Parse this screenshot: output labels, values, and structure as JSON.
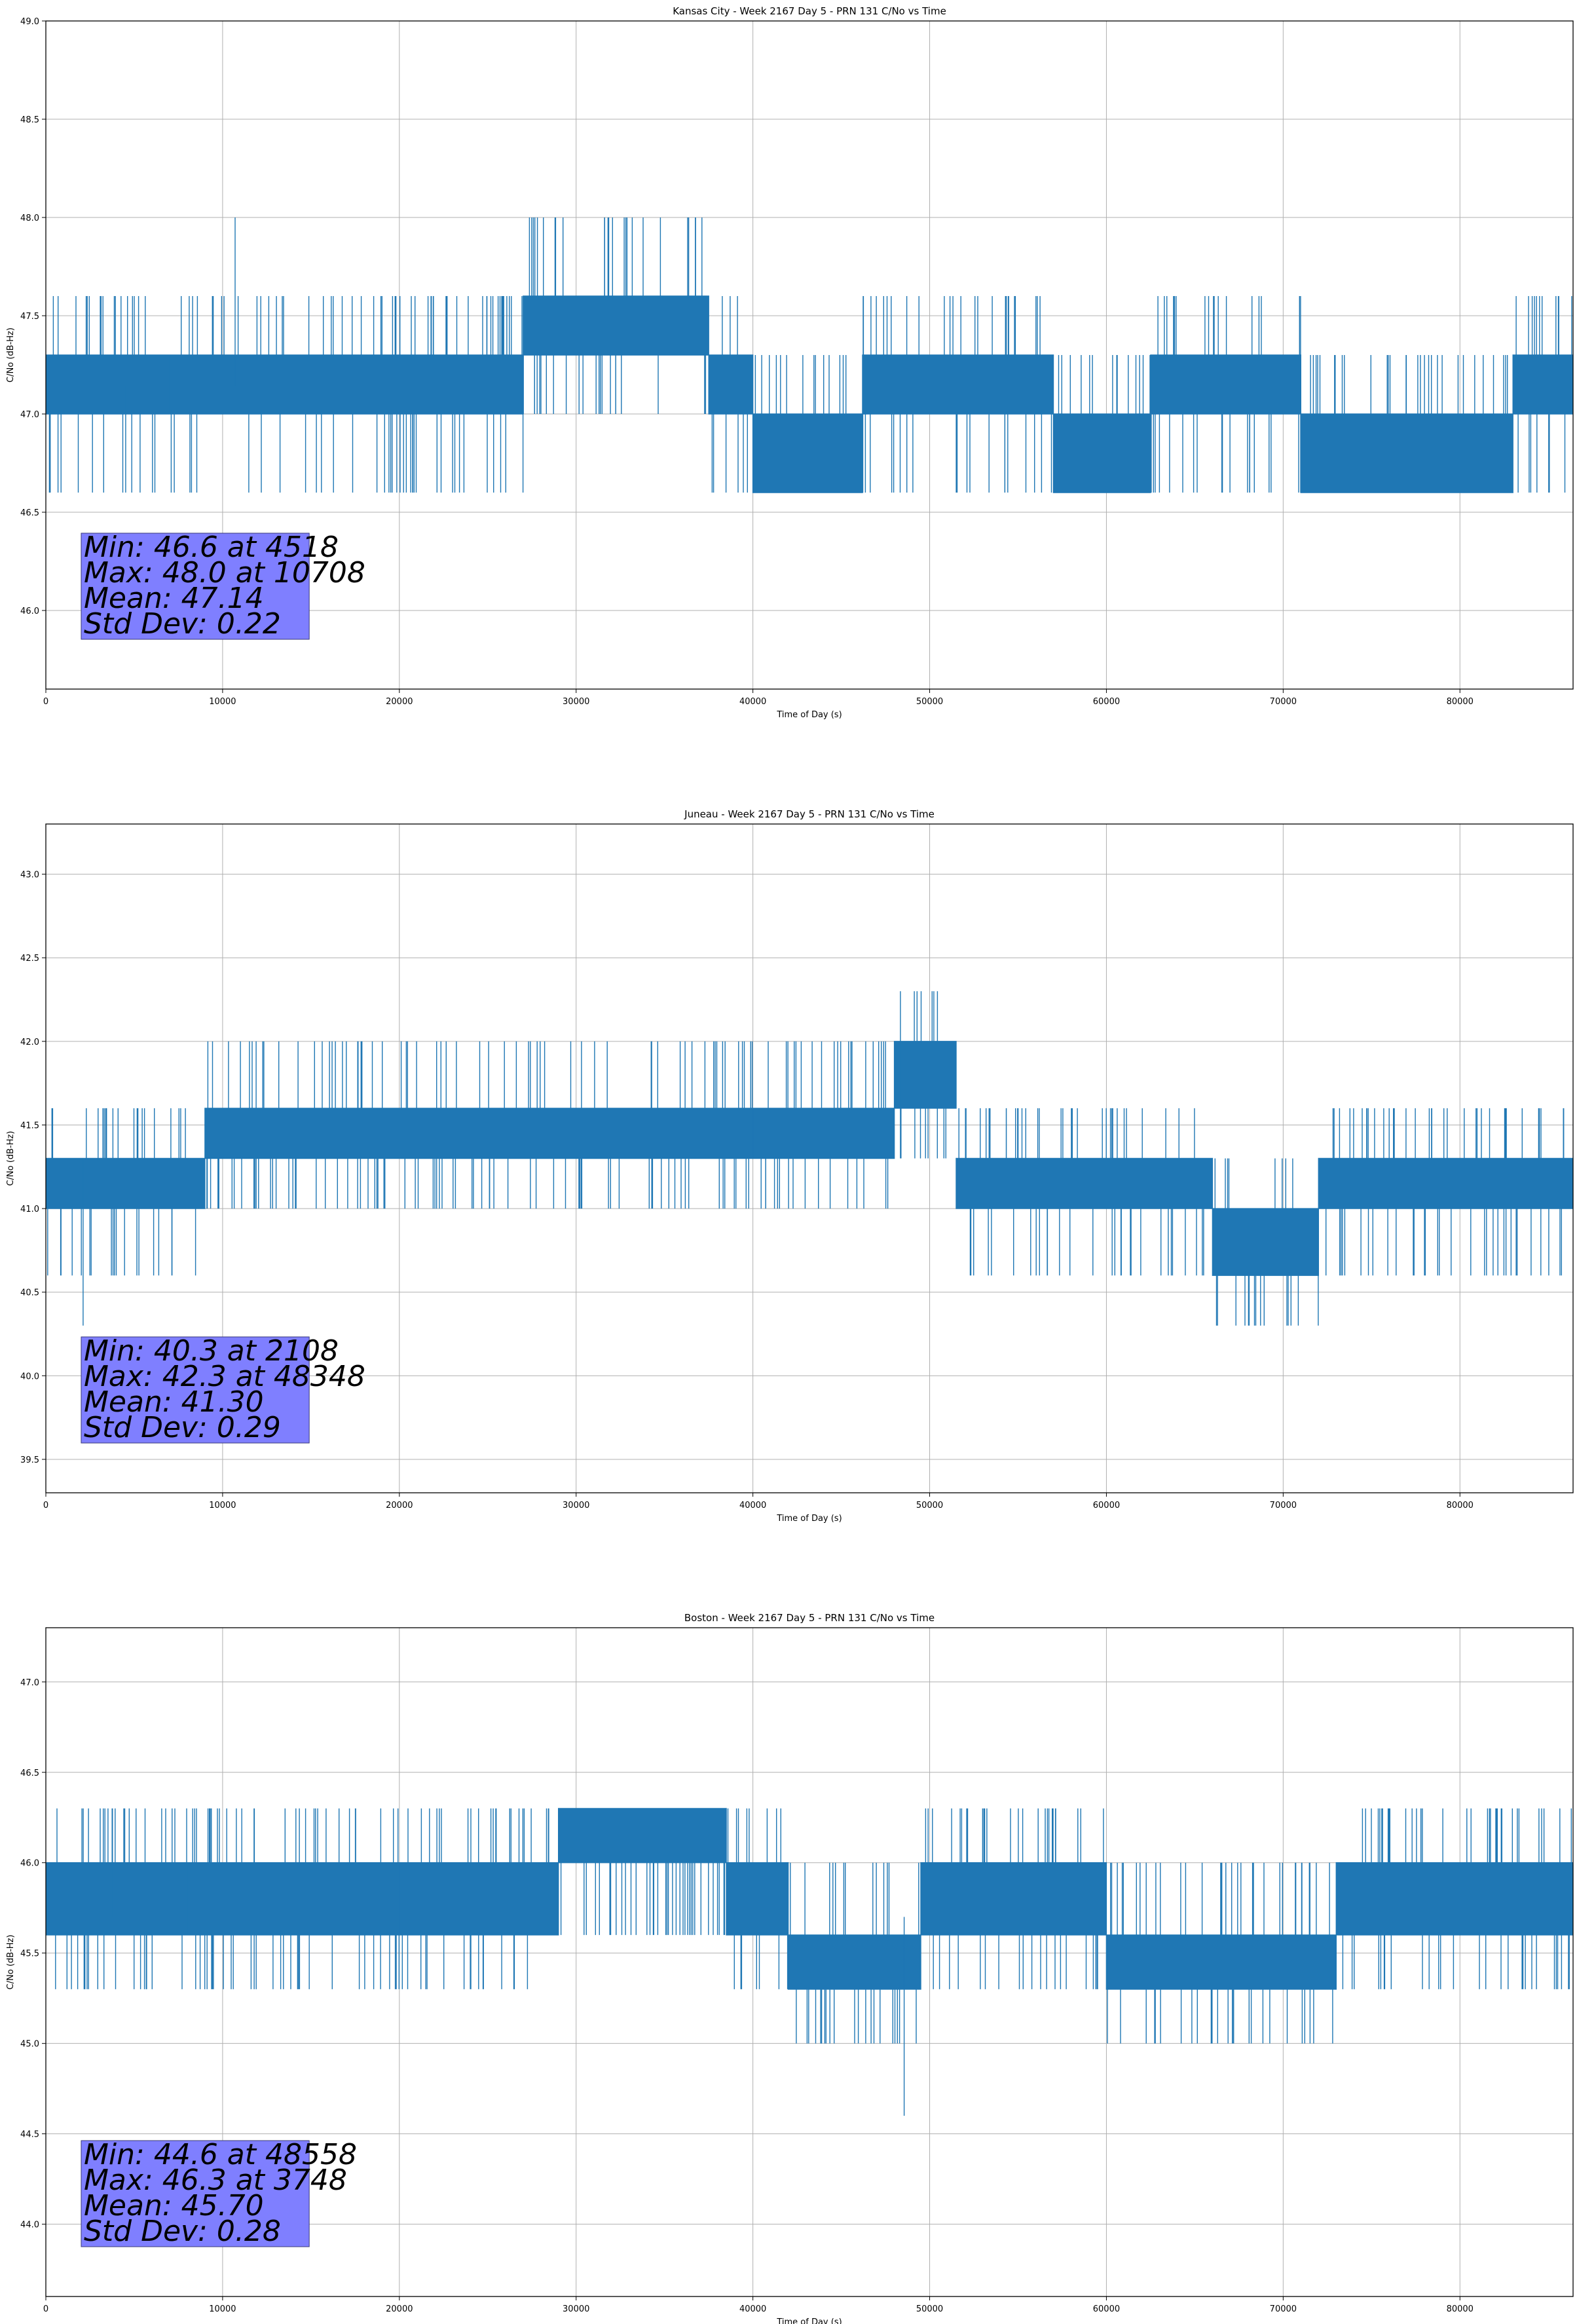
{
  "chart_data": [
    {
      "type": "line",
      "title": "Kansas City - Week 2167 Day 5 - PRN 131 C/No vs Time",
      "xlabel": "Time of Day (s)",
      "ylabel": "C/No (dB-Hz)",
      "xlim": [
        0,
        86400
      ],
      "ylim": [
        45.6,
        49.0
      ],
      "xticks": [
        0,
        10000,
        20000,
        30000,
        40000,
        50000,
        60000,
        70000,
        80000
      ],
      "yticks": [
        46.0,
        46.5,
        47.0,
        47.5,
        48.0,
        48.5,
        49.0
      ],
      "grid": true,
      "series_color": "#1f77b4",
      "quantization_levels": [
        46.6,
        47.0,
        47.3,
        47.6,
        48.0
      ],
      "mean": 47.14,
      "std": 0.22,
      "min": {
        "value": 46.6,
        "time": 4518
      },
      "max": {
        "value": 48.0,
        "time": 10708
      },
      "stats_lines": [
        "Min: 46.6 at 4518",
        "Max: 48.0 at 10708",
        "Mean: 47.14",
        "Std Dev: 0.22"
      ],
      "segments": [
        {
          "x": [
            0,
            7000
          ],
          "low": 47.0,
          "high": 47.3
        },
        {
          "x": [
            7000,
            27000
          ],
          "low": 47.0,
          "high": 47.3
        },
        {
          "x": [
            27000,
            37500
          ],
          "low": 47.3,
          "high": 47.6
        },
        {
          "x": [
            37500,
            40000
          ],
          "low": 47.0,
          "high": 47.3
        },
        {
          "x": [
            40000,
            46200
          ],
          "low": 46.6,
          "high": 47.0
        },
        {
          "x": [
            46200,
            57000
          ],
          "low": 47.0,
          "high": 47.3
        },
        {
          "x": [
            57000,
            62500
          ],
          "low": 46.6,
          "high": 47.0
        },
        {
          "x": [
            62500,
            71000
          ],
          "low": 47.0,
          "high": 47.3
        },
        {
          "x": [
            71000,
            83000
          ],
          "low": 46.6,
          "high": 47.0
        },
        {
          "x": [
            83000,
            86400
          ],
          "low": 47.0,
          "high": 47.3
        }
      ]
    },
    {
      "type": "line",
      "title": "Juneau - Week 2167 Day 5 - PRN 131 C/No vs Time",
      "xlabel": "Time of Day (s)",
      "ylabel": "C/No (dB-Hz)",
      "xlim": [
        0,
        86400
      ],
      "ylim": [
        39.3,
        43.3
      ],
      "xticks": [
        0,
        10000,
        20000,
        30000,
        40000,
        50000,
        60000,
        70000,
        80000
      ],
      "yticks": [
        39.5,
        40.0,
        40.5,
        41.0,
        41.5,
        42.0,
        42.5,
        43.0
      ],
      "grid": true,
      "series_color": "#1f77b4",
      "quantization_levels": [
        40.3,
        40.6,
        41.0,
        41.3,
        41.6,
        42.0,
        42.3
      ],
      "mean": 41.3,
      "std": 0.29,
      "min": {
        "value": 40.3,
        "time": 2108
      },
      "max": {
        "value": 42.3,
        "time": 48348
      },
      "stats_lines": [
        "Min: 40.3 at 2108",
        "Max: 42.3 at 48348",
        "Mean: 41.30",
        "Std Dev: 0.29"
      ],
      "segments": [
        {
          "x": [
            0,
            9000
          ],
          "low": 41.0,
          "high": 41.3
        },
        {
          "x": [
            9000,
            40000
          ],
          "low": 41.3,
          "high": 41.6
        },
        {
          "x": [
            40000,
            48000
          ],
          "low": 41.3,
          "high": 41.6
        },
        {
          "x": [
            48000,
            51500
          ],
          "low": 41.6,
          "high": 42.0
        },
        {
          "x": [
            51500,
            66000
          ],
          "low": 41.0,
          "high": 41.3
        },
        {
          "x": [
            66000,
            72000
          ],
          "low": 40.6,
          "high": 41.0
        },
        {
          "x": [
            72000,
            86400
          ],
          "low": 41.0,
          "high": 41.3
        }
      ]
    },
    {
      "type": "line",
      "title": "Boston - Week 2167 Day 5 - PRN 131 C/No vs Time",
      "xlabel": "Time of Day (s)",
      "ylabel": "C/No (dB-Hz)",
      "xlim": [
        0,
        86400
      ],
      "ylim": [
        43.6,
        47.3
      ],
      "xticks": [
        0,
        10000,
        20000,
        30000,
        40000,
        50000,
        60000,
        70000,
        80000
      ],
      "yticks": [
        44.0,
        44.5,
        45.0,
        45.5,
        46.0,
        46.5,
        47.0
      ],
      "grid": true,
      "series_color": "#1f77b4",
      "quantization_levels": [
        44.6,
        45.0,
        45.3,
        45.6,
        46.0,
        46.3
      ],
      "mean": 45.7,
      "std": 0.28,
      "min": {
        "value": 44.6,
        "time": 48558
      },
      "max": {
        "value": 46.3,
        "time": 3748
      },
      "stats_lines": [
        "Min: 44.6 at 48558",
        "Max: 46.3 at 3748",
        "Mean: 45.70",
        "Std Dev: 0.28"
      ],
      "segments": [
        {
          "x": [
            0,
            8000
          ],
          "low": 45.6,
          "high": 46.0
        },
        {
          "x": [
            8000,
            20000
          ],
          "low": 45.6,
          "high": 46.0
        },
        {
          "x": [
            20000,
            29000
          ],
          "low": 45.6,
          "high": 46.0
        },
        {
          "x": [
            29000,
            38500
          ],
          "low": 46.0,
          "high": 46.3
        },
        {
          "x": [
            38500,
            42000
          ],
          "low": 45.6,
          "high": 46.0
        },
        {
          "x": [
            42000,
            49500
          ],
          "low": 45.3,
          "high": 45.6
        },
        {
          "x": [
            49500,
            60000
          ],
          "low": 45.6,
          "high": 46.0
        },
        {
          "x": [
            60000,
            73000
          ],
          "low": 45.3,
          "high": 45.6
        },
        {
          "x": [
            73000,
            86400
          ],
          "low": 45.6,
          "high": 46.0
        }
      ]
    }
  ]
}
